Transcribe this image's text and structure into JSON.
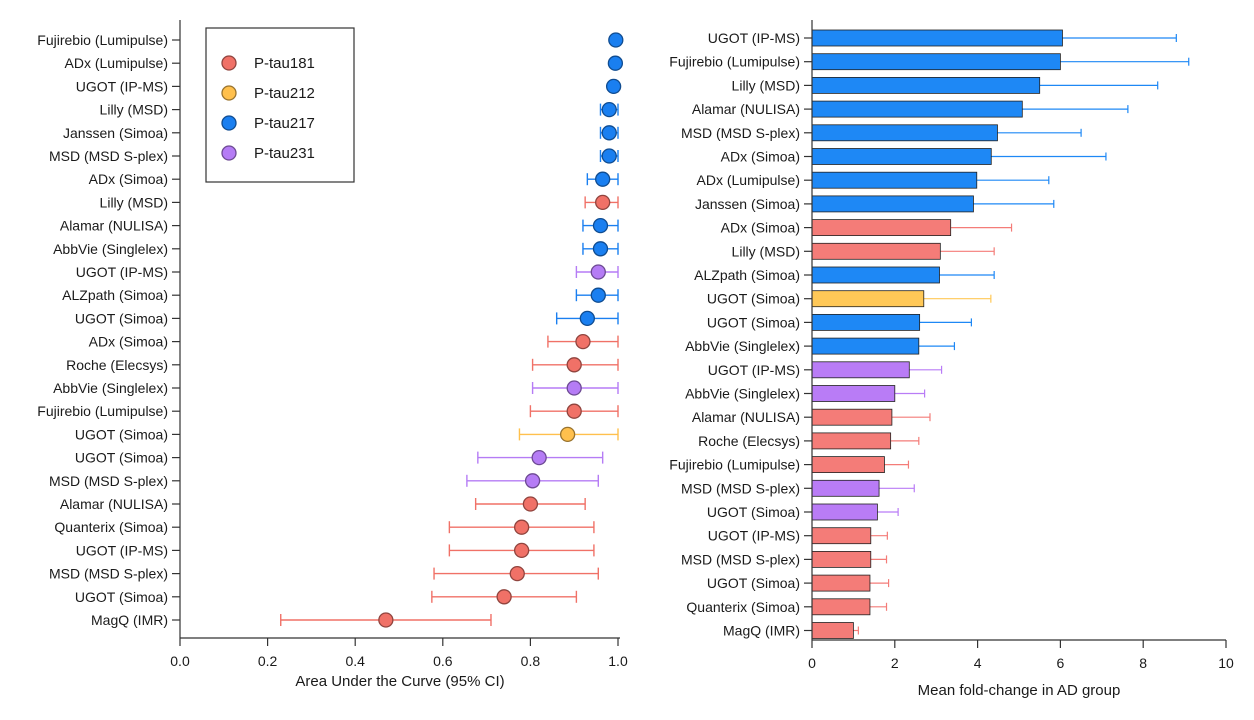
{
  "chart_data": [
    {
      "type": "scatter",
      "xlabel": "Area Under the Curve  (95% CI)",
      "xlim": [
        0.0,
        1.0
      ],
      "xticks": [
        "0.0",
        "0.2",
        "0.4",
        "0.6",
        "0.8",
        "1.0"
      ],
      "legend": {
        "placement": "top-left",
        "items": [
          "P-tau181",
          "P-tau212",
          "P-tau217",
          "P-tau231"
        ]
      },
      "colors": {
        "P-tau181": "#f07167",
        "P-tau212": "#ffc04d",
        "P-tau217": "#1a7ff0",
        "P-tau231": "#b57cf5"
      },
      "points": [
        {
          "label": "Fujirebio (Lumipulse)",
          "series": "P-tau217",
          "auc": 0.995,
          "lo": 0.99,
          "hi": 1.0
        },
        {
          "label": "ADx (Lumipulse)",
          "series": "P-tau217",
          "auc": 0.994,
          "lo": 0.99,
          "hi": 1.0
        },
        {
          "label": "UGOT (IP-MS)",
          "series": "P-tau217",
          "auc": 0.99,
          "lo": 0.985,
          "hi": 1.0
        },
        {
          "label": "Lilly (MSD)",
          "series": "P-tau217",
          "auc": 0.98,
          "lo": 0.96,
          "hi": 1.0
        },
        {
          "label": "Janssen (Simoa)",
          "series": "P-tau217",
          "auc": 0.98,
          "lo": 0.96,
          "hi": 1.0
        },
        {
          "label": "MSD (MSD S-plex)",
          "series": "P-tau217",
          "auc": 0.98,
          "lo": 0.96,
          "hi": 1.0
        },
        {
          "label": "ADx (Simoa)",
          "series": "P-tau217",
          "auc": 0.965,
          "lo": 0.93,
          "hi": 1.0
        },
        {
          "label": "Lilly (MSD)",
          "series": "P-tau181",
          "auc": 0.965,
          "lo": 0.925,
          "hi": 1.0
        },
        {
          "label": "Alamar (NULISA)",
          "series": "P-tau217",
          "auc": 0.96,
          "lo": 0.92,
          "hi": 1.0
        },
        {
          "label": "AbbVie (Singlelex)",
          "series": "P-tau217",
          "auc": 0.96,
          "lo": 0.92,
          "hi": 1.0
        },
        {
          "label": "UGOT (IP-MS)",
          "series": "P-tau231",
          "auc": 0.955,
          "lo": 0.905,
          "hi": 1.0
        },
        {
          "label": "ALZpath (Simoa)",
          "series": "P-tau217",
          "auc": 0.955,
          "lo": 0.905,
          "hi": 1.0
        },
        {
          "label": "UGOT (Simoa)",
          "series": "P-tau217",
          "auc": 0.93,
          "lo": 0.86,
          "hi": 1.0
        },
        {
          "label": "ADx (Simoa)",
          "series": "P-tau181",
          "auc": 0.92,
          "lo": 0.84,
          "hi": 1.0
        },
        {
          "label": "Roche (Elecsys)",
          "series": "P-tau181",
          "auc": 0.9,
          "lo": 0.805,
          "hi": 1.0
        },
        {
          "label": "AbbVie (Singlelex)",
          "series": "P-tau231",
          "auc": 0.9,
          "lo": 0.805,
          "hi": 1.0
        },
        {
          "label": "Fujirebio (Lumipulse)",
          "series": "P-tau181",
          "auc": 0.9,
          "lo": 0.8,
          "hi": 1.0
        },
        {
          "label": "UGOT (Simoa)",
          "series": "P-tau212",
          "auc": 0.885,
          "lo": 0.775,
          "hi": 1.0
        },
        {
          "label": "UGOT (Simoa)",
          "series": "P-tau231",
          "auc": 0.82,
          "lo": 0.68,
          "hi": 0.965
        },
        {
          "label": "MSD (MSD S-plex)",
          "series": "P-tau231",
          "auc": 0.805,
          "lo": 0.655,
          "hi": 0.955
        },
        {
          "label": "Alamar (NULISA)",
          "series": "P-tau181",
          "auc": 0.8,
          "lo": 0.675,
          "hi": 0.925
        },
        {
          "label": "Quanterix (Simoa)",
          "series": "P-tau181",
          "auc": 0.78,
          "lo": 0.615,
          "hi": 0.945
        },
        {
          "label": "UGOT (IP-MS)",
          "series": "P-tau181",
          "auc": 0.78,
          "lo": 0.615,
          "hi": 0.945
        },
        {
          "label": "MSD (MSD S-plex)",
          "series": "P-tau181",
          "auc": 0.77,
          "lo": 0.58,
          "hi": 0.955
        },
        {
          "label": "UGOT (Simoa)",
          "series": "P-tau181",
          "auc": 0.74,
          "lo": 0.575,
          "hi": 0.905
        },
        {
          "label": "MagQ (IMR)",
          "series": "P-tau181",
          "auc": 0.47,
          "lo": 0.23,
          "hi": 0.71
        }
      ]
    },
    {
      "type": "bar",
      "orientation": "horizontal",
      "xlabel": "Mean fold-change in AD group",
      "xlim": [
        0,
        10
      ],
      "xticks": [
        "0",
        "2",
        "4",
        "6",
        "8",
        "10"
      ],
      "colors": {
        "P-tau181": "#f47c78",
        "P-tau212": "#ffc857",
        "P-tau217": "#1e88f5",
        "P-tau231": "#b97cf6"
      },
      "bars": [
        {
          "label": "UGOT (IP-MS)",
          "series": "P-tau217",
          "value": 6.05,
          "err": 2.75
        },
        {
          "label": "Fujirebio (Lumipulse)",
          "series": "P-tau217",
          "value": 6.0,
          "err": 3.1
        },
        {
          "label": "Lilly (MSD)",
          "series": "P-tau217",
          "value": 5.5,
          "err": 2.85
        },
        {
          "label": "Alamar (NULISA)",
          "series": "P-tau217",
          "value": 5.08,
          "err": 2.55
        },
        {
          "label": "MSD (MSD S-plex)",
          "series": "P-tau217",
          "value": 4.48,
          "err": 2.02
        },
        {
          "label": "ADx (Simoa)",
          "series": "P-tau217",
          "value": 4.33,
          "err": 2.77
        },
        {
          "label": "ADx (Lumipulse)",
          "series": "P-tau217",
          "value": 3.98,
          "err": 1.74
        },
        {
          "label": "Janssen (Simoa)",
          "series": "P-tau217",
          "value": 3.9,
          "err": 1.94
        },
        {
          "label": "ADx (Simoa)",
          "series": "P-tau181",
          "value": 3.35,
          "err": 1.47
        },
        {
          "label": "Lilly (MSD)",
          "series": "P-tau181",
          "value": 3.1,
          "err": 1.3
        },
        {
          "label": "ALZpath (Simoa)",
          "series": "P-tau217",
          "value": 3.08,
          "err": 1.32
        },
        {
          "label": "UGOT (Simoa)",
          "series": "P-tau212",
          "value": 2.7,
          "err": 1.62
        },
        {
          "label": "UGOT (Simoa)",
          "series": "P-tau217",
          "value": 2.6,
          "err": 1.25
        },
        {
          "label": "AbbVie (Singlelex)",
          "series": "P-tau217",
          "value": 2.58,
          "err": 0.86
        },
        {
          "label": "UGOT (IP-MS)",
          "series": "P-tau231",
          "value": 2.35,
          "err": 0.78
        },
        {
          "label": "AbbVie (Singlelex)",
          "series": "P-tau231",
          "value": 2.0,
          "err": 0.72
        },
        {
          "label": "Alamar (NULISA)",
          "series": "P-tau181",
          "value": 1.93,
          "err": 0.92
        },
        {
          "label": "Roche (Elecsys)",
          "series": "P-tau181",
          "value": 1.9,
          "err": 0.68
        },
        {
          "label": "Fujirebio (Lumipulse)",
          "series": "P-tau181",
          "value": 1.75,
          "err": 0.58
        },
        {
          "label": "MSD (MSD S-plex)",
          "series": "P-tau231",
          "value": 1.62,
          "err": 0.85
        },
        {
          "label": "UGOT (Simoa)",
          "series": "P-tau231",
          "value": 1.58,
          "err": 0.5
        },
        {
          "label": "UGOT (IP-MS)",
          "series": "P-tau181",
          "value": 1.42,
          "err": 0.4
        },
        {
          "label": "MSD (MSD S-plex)",
          "series": "P-tau181",
          "value": 1.42,
          "err": 0.38
        },
        {
          "label": "UGOT (Simoa)",
          "series": "P-tau181",
          "value": 1.4,
          "err": 0.45
        },
        {
          "label": "Quanterix (Simoa)",
          "series": "P-tau181",
          "value": 1.4,
          "err": 0.4
        },
        {
          "label": "MagQ (IMR)",
          "series": "P-tau181",
          "value": 1.0,
          "err": 0.12
        }
      ]
    }
  ]
}
